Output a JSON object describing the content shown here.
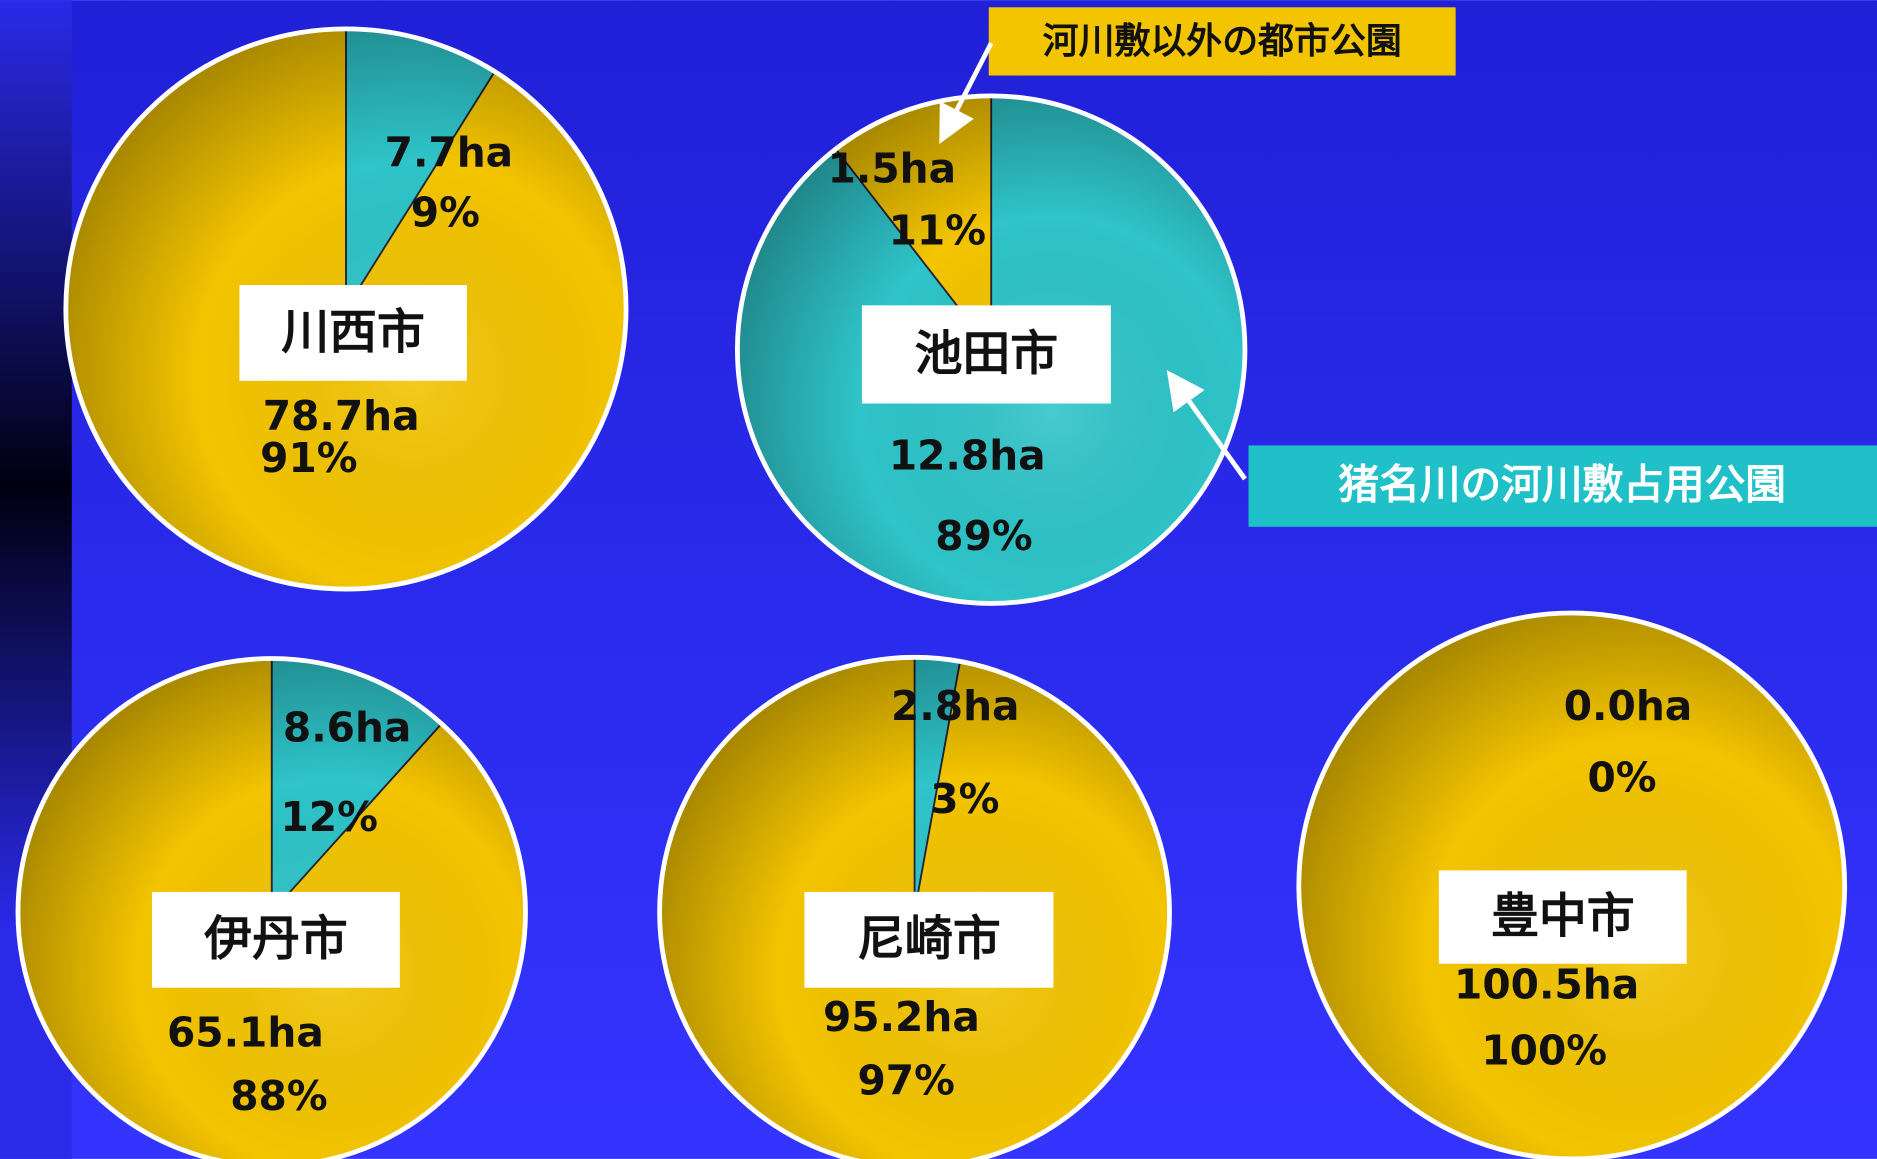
{
  "chart_data": [
    {
      "type": "pie",
      "title": "川西市",
      "values": [
        7.7,
        78.7
      ],
      "value_labels": [
        "7.7ha",
        "78.7ha"
      ],
      "percents": [
        9,
        91
      ],
      "percent_labels": [
        "9%",
        "91%"
      ],
      "colors": [
        "#2ec4c9",
        "#f3c400"
      ]
    },
    {
      "type": "pie",
      "title": "池田市",
      "values": [
        12.8,
        1.5
      ],
      "value_labels": [
        "12.8ha",
        "1.5ha"
      ],
      "percents": [
        89,
        11
      ],
      "percent_labels": [
        "89%",
        "11%"
      ],
      "colors": [
        "#2ec4c9",
        "#f3c400"
      ]
    },
    {
      "type": "pie",
      "title": "伊丹市",
      "values": [
        8.6,
        65.1
      ],
      "value_labels": [
        "8.6ha",
        "65.1ha"
      ],
      "percents": [
        12,
        88
      ],
      "percent_labels": [
        "12%",
        "88%"
      ],
      "colors": [
        "#2ec4c9",
        "#f3c400"
      ]
    },
    {
      "type": "pie",
      "title": "尼崎市",
      "values": [
        2.8,
        95.2
      ],
      "value_labels": [
        "2.8ha",
        "95.2ha"
      ],
      "percents": [
        3,
        97
      ],
      "percent_labels": [
        "3%",
        "97%"
      ],
      "colors": [
        "#2ec4c9",
        "#f3c400"
      ]
    },
    {
      "type": "pie",
      "title": "豊中市",
      "values": [
        0.0,
        100.5
      ],
      "value_labels": [
        "0.0ha",
        "100.5ha"
      ],
      "percents": [
        0,
        100
      ],
      "percent_labels": [
        "0%",
        "100%"
      ],
      "colors": [
        "#2ec4c9",
        "#f3c400"
      ]
    }
  ],
  "annotations": [
    "河川敷以外の都市公園",
    "猪名川の河川敷占用公園"
  ]
}
